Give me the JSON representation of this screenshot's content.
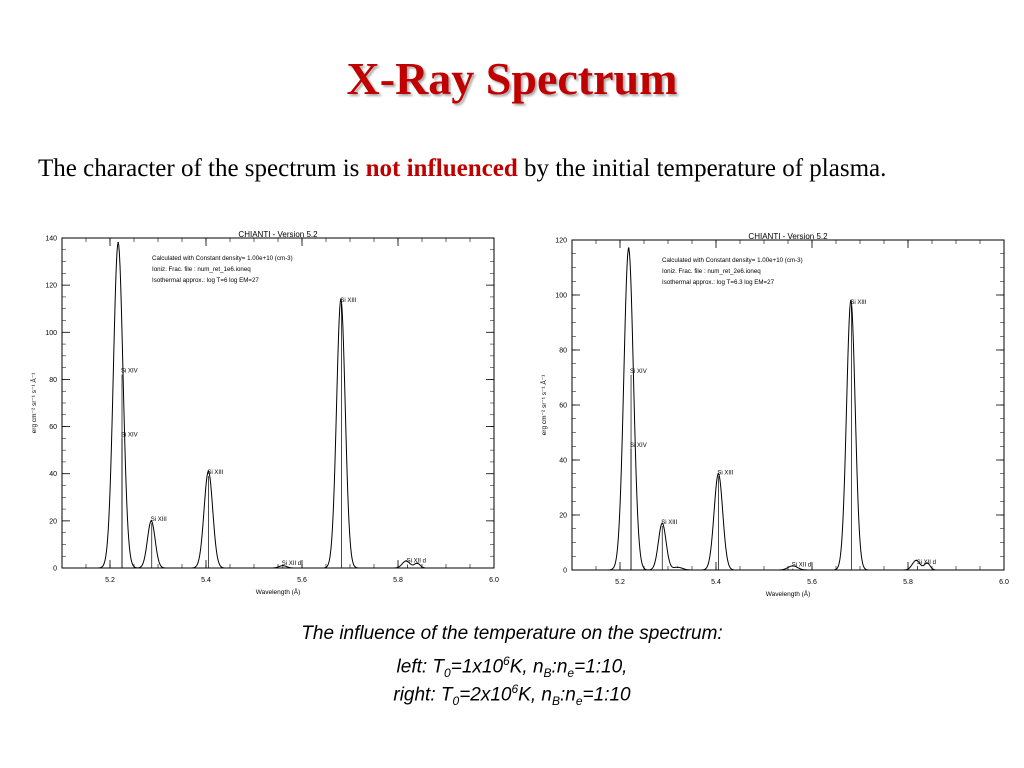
{
  "slide": {
    "title": "X-Ray Spectrum",
    "intro": {
      "before": "The character of the spectrum is ",
      "highlight": "not influenced",
      "after": " by the initial temperature of plasma."
    },
    "caption": {
      "line1": "The influence of the temperature on the spectrum:",
      "left": {
        "prefix": "left: T",
        "t_sub": "0",
        "eq1": "=1x10",
        "exp": "6",
        "mid": "K, n",
        "nb_sub": "B",
        "colon": ":n",
        "ne_sub": "e",
        "ratio": "=1:10,"
      },
      "right": {
        "prefix": "right: T",
        "t_sub": "0",
        "eq1": "=2x10",
        "exp": "6",
        "mid": "K, n",
        "nb_sub": "B",
        "colon": ":n",
        "ne_sub": "e",
        "ratio": "=1:10"
      }
    },
    "colors": {
      "title": "#c00000",
      "highlight": "#c00000",
      "plot_line": "#000000"
    }
  },
  "chart_data": [
    {
      "type": "line",
      "title": "CHIANTI  -  Version  5.2",
      "notes": [
        "Calculated with Constant density=  1.00e+10  (cm-3)",
        "Ioniz. Frac. file : num_ret_1e6.ioneq",
        "Isothermal approx.: log T=6  log EM=27"
      ],
      "xlabel": "Wavelength (Å)",
      "ylabel": "erg cm⁻² sr⁻¹ s⁻¹ Å⁻¹",
      "xlim": [
        5.1,
        6.0
      ],
      "ylim": [
        0,
        140
      ],
      "xticks": [
        5.2,
        5.4,
        5.6,
        5.8,
        6.0
      ],
      "yticks": [
        0,
        20,
        40,
        60,
        80,
        100,
        120,
        140
      ],
      "xtick_labels": [
        "5.2",
        "5.4",
        "5.6",
        "5.8",
        "6.0"
      ],
      "ytick_labels": [
        "0",
        "20",
        "40",
        "60",
        "80",
        "100",
        "120",
        "140"
      ],
      "peaks": [
        {
          "x": 5.217,
          "y": 138,
          "w": 0.01
        },
        {
          "x": 5.286,
          "y": 20,
          "w": 0.008
        },
        {
          "x": 5.405,
          "y": 41,
          "w": 0.009
        },
        {
          "x": 5.56,
          "y": 1,
          "w": 0.008
        },
        {
          "x": 5.681,
          "y": 114,
          "w": 0.009
        },
        {
          "x": 5.817,
          "y": 3,
          "w": 0.008
        },
        {
          "x": 5.84,
          "y": 2,
          "w": 0.006
        }
      ],
      "line_markers": [
        {
          "x": 5.225,
          "y": 82,
          "label": "Si XIV"
        },
        {
          "x": 5.225,
          "y": 55,
          "label": "Si XIV"
        },
        {
          "x": 5.287,
          "y": 19,
          "label": "Si XIII"
        },
        {
          "x": 5.405,
          "y": 39,
          "label": "Si XIII"
        },
        {
          "x": 5.56,
          "y": 0.5,
          "label": "Si XII  d"
        },
        {
          "x": 5.682,
          "y": 112,
          "label": "Si XIII"
        },
        {
          "x": 5.82,
          "y": 1.5,
          "label": "Si XII d"
        }
      ]
    },
    {
      "type": "line",
      "title": "CHIANTI  -  Version  5.2",
      "notes": [
        "Calculated with Constant density=  1.00e+10  (cm-3)",
        "Ioniz. Frac. file : num_ret_2e6.ioneq",
        "Isothermal approx.: log T=6.3  log EM=27"
      ],
      "xlabel": "Wavelength (Å)",
      "ylabel": "erg cm⁻² sr⁻¹ s⁻¹ Å⁻¹",
      "xlim": [
        5.1,
        6.0
      ],
      "ylim": [
        0,
        120
      ],
      "xticks": [
        5.2,
        5.4,
        5.6,
        5.8,
        6.0
      ],
      "yticks": [
        0,
        20,
        40,
        60,
        80,
        100,
        120
      ],
      "xtick_labels": [
        "5.2",
        "5.4",
        "5.6",
        "5.8",
        "6.0"
      ],
      "ytick_labels": [
        "0",
        "20",
        "40",
        "60",
        "80",
        "100",
        "120"
      ],
      "peaks": [
        {
          "x": 5.218,
          "y": 117,
          "w": 0.01
        },
        {
          "x": 5.288,
          "y": 17,
          "w": 0.008
        },
        {
          "x": 5.32,
          "y": 1,
          "w": 0.01
        },
        {
          "x": 5.405,
          "y": 35,
          "w": 0.009
        },
        {
          "x": 5.56,
          "y": 1.5,
          "w": 0.01
        },
        {
          "x": 5.681,
          "y": 98,
          "w": 0.009
        },
        {
          "x": 5.817,
          "y": 3.5,
          "w": 0.008
        },
        {
          "x": 5.84,
          "y": 2.5,
          "w": 0.006
        }
      ],
      "line_markers": [
        {
          "x": 5.223,
          "y": 71,
          "label": "Si XIV"
        },
        {
          "x": 5.223,
          "y": 44,
          "label": "Si XIV"
        },
        {
          "x": 5.288,
          "y": 16,
          "label": "Si XIII"
        },
        {
          "x": 5.405,
          "y": 34,
          "label": "Si XIII"
        },
        {
          "x": 5.56,
          "y": 0.5,
          "label": "Si XII  d"
        },
        {
          "x": 5.682,
          "y": 96,
          "label": "Si XIII"
        },
        {
          "x": 5.82,
          "y": 1.5,
          "label": "Si XII d"
        }
      ]
    }
  ]
}
